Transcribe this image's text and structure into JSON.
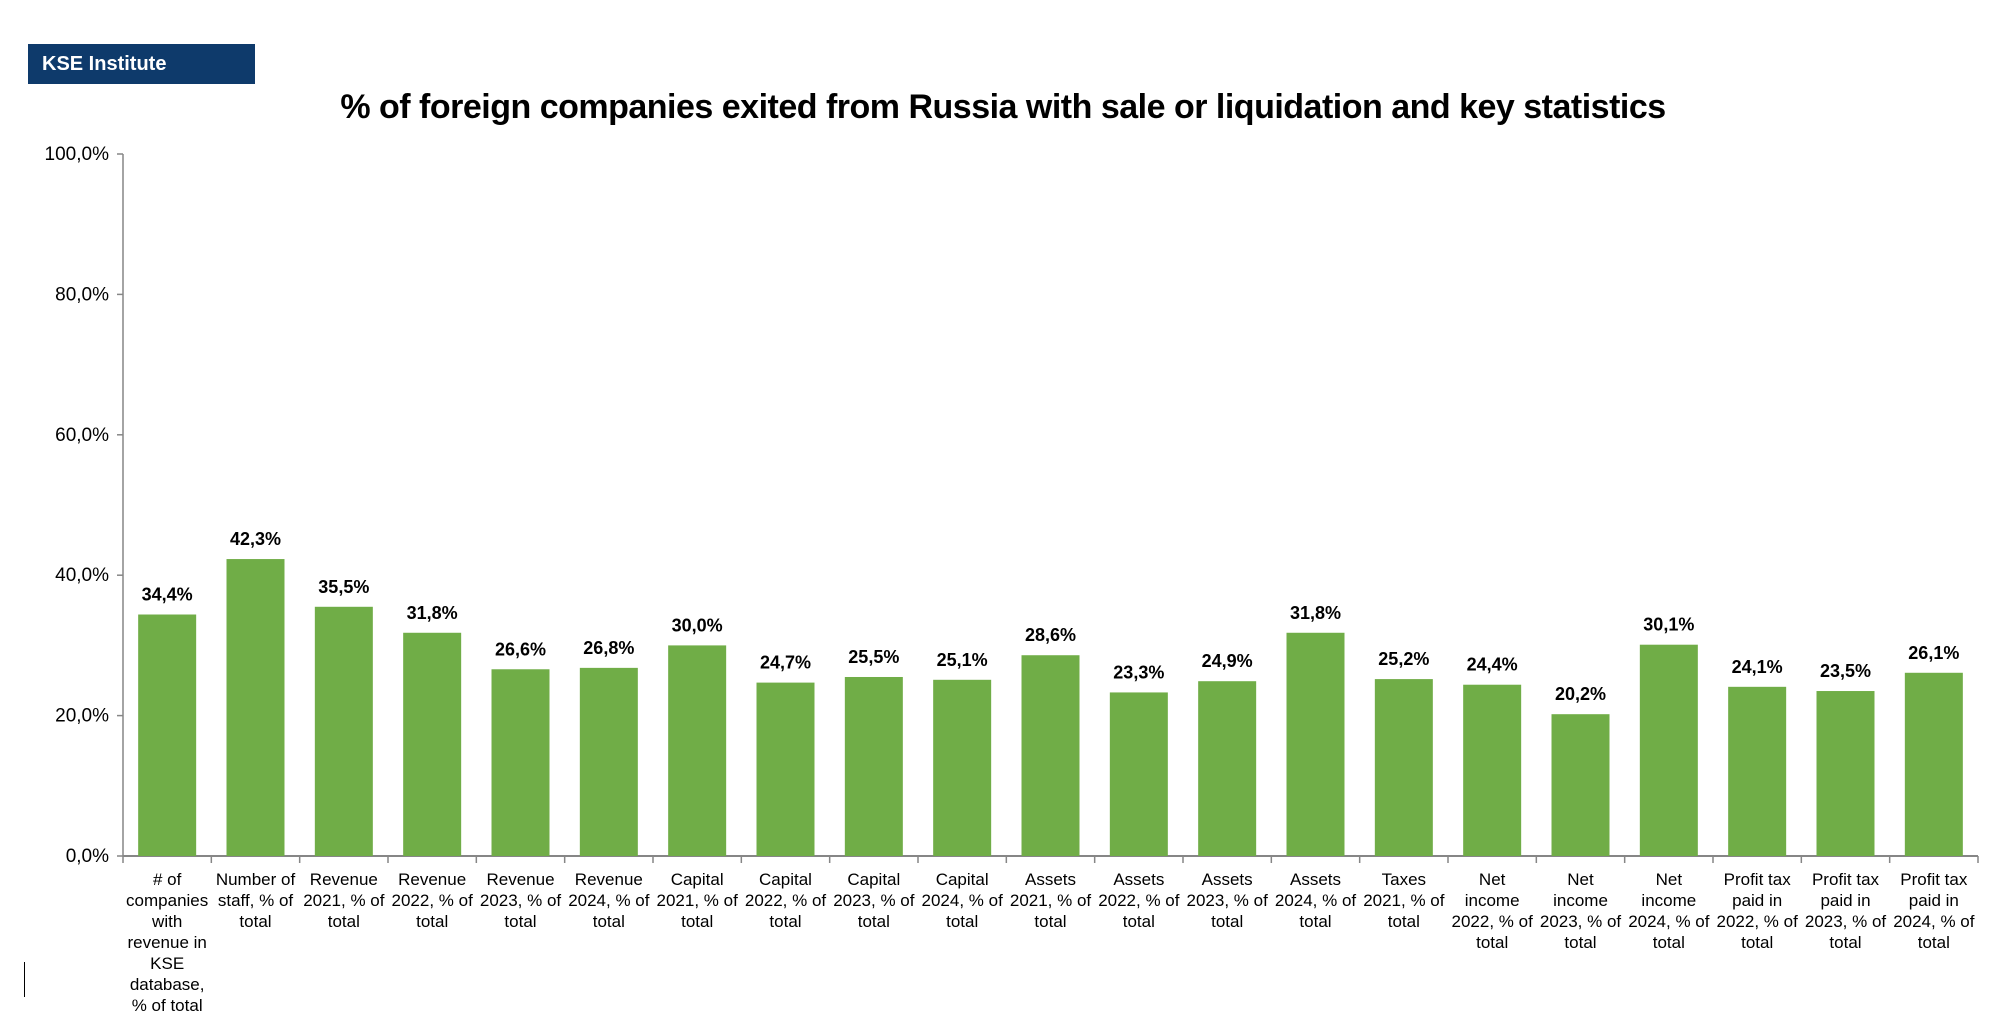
{
  "brand": "KSE Institute",
  "chart_data": {
    "type": "bar",
    "title": "% of foreign companies exited from Russia with sale or liquidation and key statistics",
    "xlabel": "",
    "ylabel": "",
    "ylim": [
      0,
      100
    ],
    "yticks": [
      "0,0%",
      "20,0%",
      "40,0%",
      "60,0%",
      "80,0%",
      "100,0%"
    ],
    "ytick_values": [
      0,
      20,
      40,
      60,
      80,
      100
    ],
    "grid": false,
    "bar_color": "#70ad47",
    "categories": [
      [
        "# of",
        "companies",
        "with",
        "revenue in",
        "KSE",
        "database,",
        "% of total"
      ],
      [
        "Number of",
        "staff, % of",
        "total"
      ],
      [
        "Revenue",
        "2021, % of",
        "total"
      ],
      [
        "Revenue",
        "2022, % of",
        "total"
      ],
      [
        "Revenue",
        "2023, % of",
        "total"
      ],
      [
        "Revenue",
        "2024, % of",
        "total"
      ],
      [
        "Capital",
        "2021, % of",
        "total"
      ],
      [
        "Capital",
        "2022, % of",
        "total"
      ],
      [
        "Capital",
        "2023, % of",
        "total"
      ],
      [
        "Capital",
        "2024, % of",
        "total"
      ],
      [
        "Assets",
        "2021, % of",
        "total"
      ],
      [
        "Assets",
        "2022, % of",
        "total"
      ],
      [
        "Assets",
        "2023, % of",
        "total"
      ],
      [
        "Assets",
        "2024, % of",
        "total"
      ],
      [
        "Taxes",
        "2021, % of",
        "total"
      ],
      [
        "Net",
        "income",
        "2022, % of",
        "total"
      ],
      [
        "Net",
        "income",
        "2023, % of",
        "total"
      ],
      [
        "Net",
        "income",
        "2024, % of",
        "total"
      ],
      [
        "Profit tax",
        "paid in",
        "2022, % of",
        "total"
      ],
      [
        "Profit tax",
        "paid in",
        "2023, % of",
        "total"
      ],
      [
        "Profit tax",
        "paid in",
        "2024, % of",
        "total"
      ]
    ],
    "values": [
      34.4,
      42.3,
      35.5,
      31.8,
      26.6,
      26.8,
      30.0,
      24.7,
      25.5,
      25.1,
      28.6,
      23.3,
      24.9,
      31.8,
      25.2,
      24.4,
      20.2,
      30.1,
      24.1,
      23.5,
      26.1
    ],
    "data_labels": [
      "34,4%",
      "42,3%",
      "35,5%",
      "31,8%",
      "26,6%",
      "26,8%",
      "30,0%",
      "24,7%",
      "25,5%",
      "25,1%",
      "28,6%",
      "23,3%",
      "24,9%",
      "31,8%",
      "25,2%",
      "24,4%",
      "20,2%",
      "30,1%",
      "24,1%",
      "23,5%",
      "26,1%"
    ]
  }
}
